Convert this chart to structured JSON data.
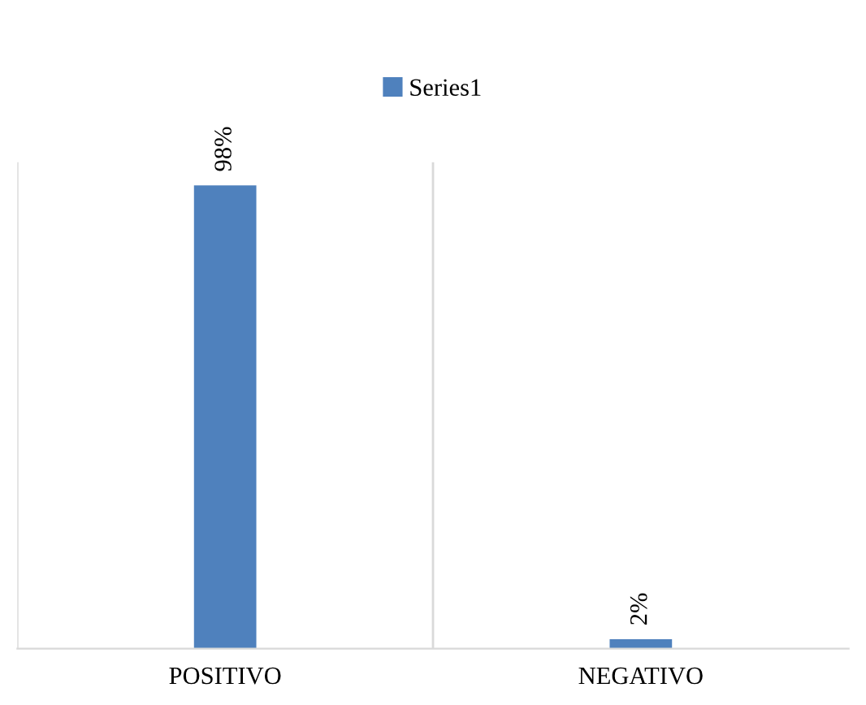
{
  "chart_data": {
    "type": "bar",
    "categories": [
      "POSITIVO",
      "NEGATIVO"
    ],
    "series": [
      {
        "name": "Series1",
        "color": "#4f81bd",
        "values": [
          98,
          2
        ],
        "value_labels": [
          "98%",
          "2%"
        ]
      }
    ],
    "legend": "top"
  }
}
